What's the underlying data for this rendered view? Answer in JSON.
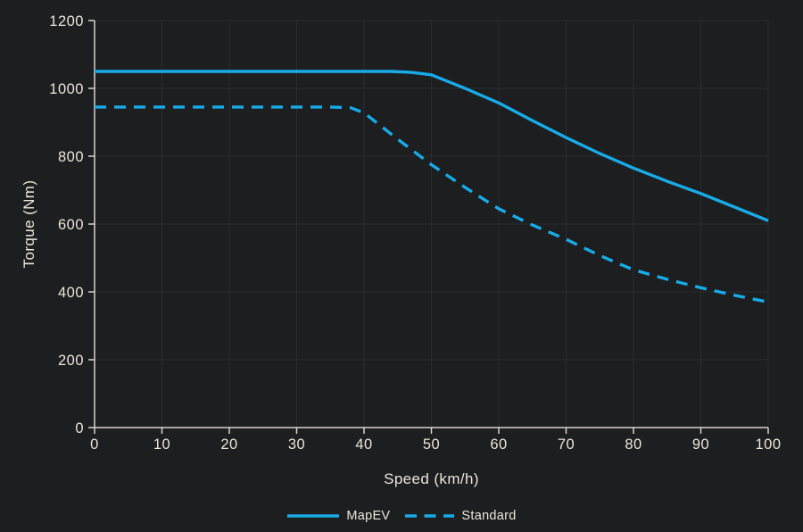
{
  "chart_data": {
    "type": "line",
    "title": "",
    "xlabel": "Speed (km/h)",
    "ylabel": "Torque (Nm)",
    "xlim": [
      0,
      100
    ],
    "ylim": [
      0,
      1200
    ],
    "x_ticks": [
      0,
      10,
      20,
      30,
      40,
      50,
      60,
      70,
      80,
      90,
      100
    ],
    "y_ticks": [
      0,
      200,
      400,
      600,
      800,
      1000,
      1200
    ],
    "grid": true,
    "legend_position": "bottom-center",
    "series": [
      {
        "name": "MapEV",
        "style": "solid",
        "color": "#17abe8",
        "points": [
          [
            0,
            1050
          ],
          [
            10,
            1050
          ],
          [
            20,
            1050
          ],
          [
            30,
            1050
          ],
          [
            40,
            1050
          ],
          [
            44,
            1050
          ],
          [
            47,
            1047
          ],
          [
            50,
            1040
          ],
          [
            55,
            1000
          ],
          [
            60,
            957
          ],
          [
            65,
            905
          ],
          [
            70,
            855
          ],
          [
            75,
            808
          ],
          [
            80,
            765
          ],
          [
            85,
            726
          ],
          [
            90,
            690
          ],
          [
            95,
            650
          ],
          [
            100,
            610
          ]
        ]
      },
      {
        "name": "Standard",
        "style": "dashed",
        "color": "#17abe8",
        "points": [
          [
            0,
            945
          ],
          [
            10,
            945
          ],
          [
            20,
            945
          ],
          [
            30,
            945
          ],
          [
            35,
            945
          ],
          [
            38,
            943
          ],
          [
            40,
            928
          ],
          [
            45,
            850
          ],
          [
            50,
            775
          ],
          [
            55,
            708
          ],
          [
            60,
            645
          ],
          [
            65,
            597
          ],
          [
            70,
            555
          ],
          [
            75,
            507
          ],
          [
            80,
            465
          ],
          [
            85,
            437
          ],
          [
            90,
            412
          ],
          [
            95,
            390
          ],
          [
            100,
            370
          ]
        ]
      }
    ]
  },
  "colors": {
    "background": "#1d1e20",
    "grid": "#2b2c2f",
    "axis": "#d6d3cc",
    "text": "#ebe6dc",
    "accent": "#17abe8"
  }
}
